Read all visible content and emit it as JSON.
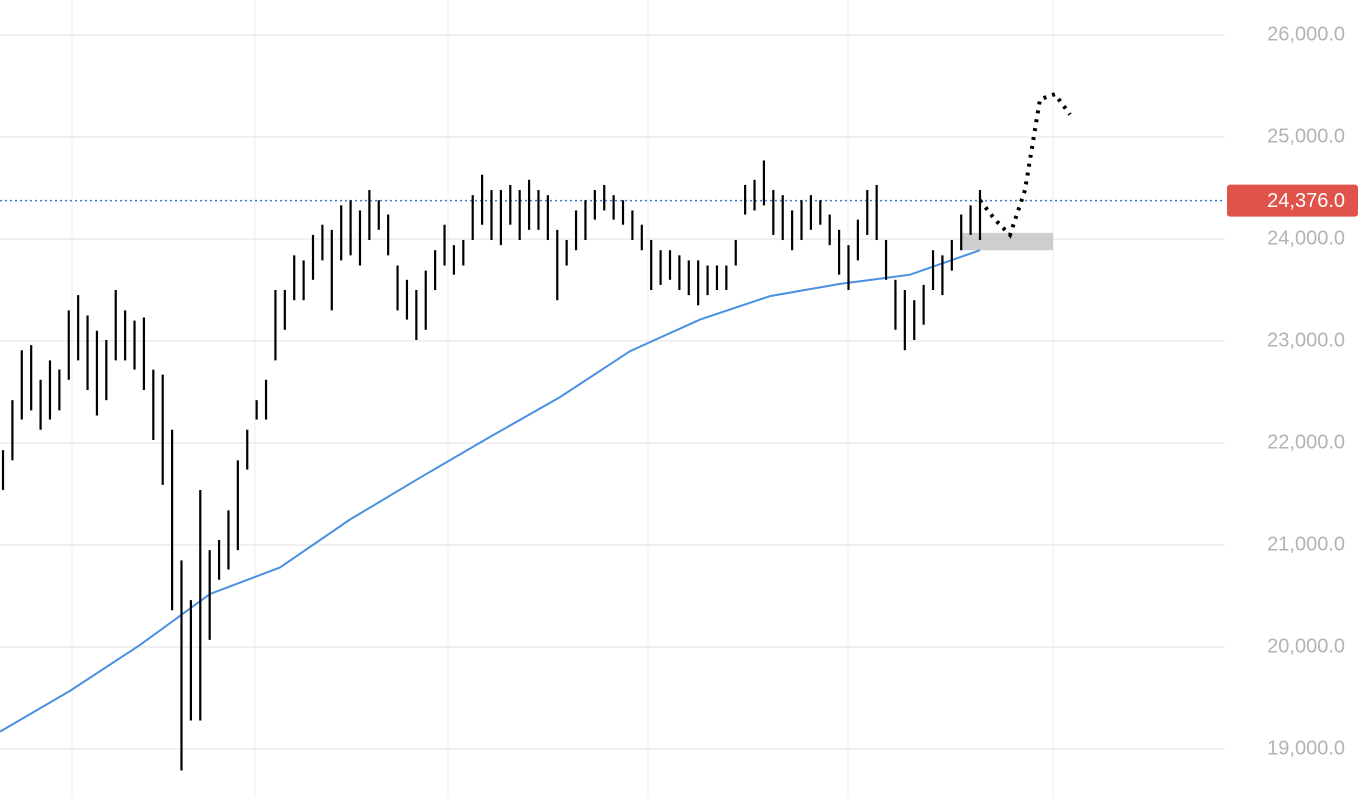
{
  "chart_data": {
    "type": "range-bar",
    "ylim": [
      18520,
      26343
    ],
    "yticks": [
      {
        "value": 19000,
        "label": "19,000.0"
      },
      {
        "value": 20000,
        "label": "20,000.0"
      },
      {
        "value": 21000,
        "label": "21,000.0"
      },
      {
        "value": 22000,
        "label": "22,000.0"
      },
      {
        "value": 23000,
        "label": "23,000.0"
      },
      {
        "value": 24000,
        "label": "24,000.0"
      },
      {
        "value": 25000,
        "label": "25,000.0"
      },
      {
        "value": 26000,
        "label": "26,000.0"
      }
    ],
    "grid": true,
    "bars": {
      "color": "#000000",
      "high": [
        21930,
        22420,
        22910,
        22960,
        22620,
        22810,
        22720,
        23300,
        23450,
        23250,
        23100,
        23010,
        23500,
        23300,
        23200,
        23230,
        22720,
        22670,
        22130,
        20850,
        20460,
        21540,
        20950,
        21050,
        21340,
        21830,
        22130,
        22420,
        22620,
        23500,
        23500,
        23840,
        23790,
        24040,
        24140,
        24090,
        24330,
        24380,
        24280,
        24480,
        24380,
        24240,
        23740,
        23600,
        23500,
        23690,
        23890,
        24140,
        23940,
        23990,
        24430,
        24630,
        24480,
        24480,
        24530,
        24480,
        24580,
        24480,
        24430,
        24090,
        23990,
        24280,
        24380,
        24480,
        24530,
        24430,
        24380,
        24280,
        24140,
        23990,
        23890,
        23890,
        23840,
        23790,
        23790,
        23740,
        23740,
        23740,
        23990,
        24530,
        24580,
        24770,
        24480,
        24430,
        24280,
        24380,
        24430,
        24380,
        24240,
        24090,
        23940,
        24190,
        24480,
        24530,
        23990,
        23600,
        23500,
        23400,
        23550,
        23890,
        23840,
        23990,
        24240,
        24330,
        24480
      ],
      "low": [
        21540,
        21830,
        22230,
        22320,
        22130,
        22230,
        22320,
        22620,
        22810,
        22520,
        22270,
        22420,
        22810,
        22810,
        22720,
        22520,
        22030,
        21590,
        20360,
        18790,
        19280,
        19280,
        20070,
        20660,
        20760,
        20950,
        21740,
        22230,
        22230,
        22810,
        23110,
        23400,
        23400,
        23600,
        23790,
        23300,
        23790,
        23840,
        23740,
        23990,
        24090,
        23840,
        23300,
        23210,
        23010,
        23110,
        23500,
        23740,
        23650,
        23740,
        23990,
        24140,
        23990,
        23940,
        24140,
        23990,
        24090,
        24090,
        23990,
        23400,
        23740,
        23890,
        23990,
        24190,
        24280,
        24190,
        24140,
        23990,
        23890,
        23500,
        23550,
        23600,
        23500,
        23450,
        23350,
        23450,
        23500,
        23500,
        23740,
        24240,
        24280,
        24330,
        24040,
        23990,
        23890,
        23990,
        24090,
        24140,
        23940,
        23650,
        23500,
        23790,
        24040,
        23990,
        23600,
        23110,
        22910,
        23010,
        23160,
        23500,
        23450,
        23690,
        23890,
        24040,
        23990
      ]
    },
    "moving_average": {
      "color": "#4a90e2",
      "values": [
        19170,
        19570,
        20020,
        20520,
        20780,
        21250,
        21660,
        22060,
        22450,
        22900,
        23210,
        23440,
        23560,
        23650,
        23890
      ]
    },
    "projection": {
      "color": "#000000",
      "values": [
        24380,
        24190,
        24040,
        24480,
        25370,
        25420,
        25220
      ]
    },
    "zone": [
      23890,
      24060
    ],
    "last_price": {
      "value": 24376,
      "label": "24,376.0",
      "color": "#e0534a",
      "line_color": "#3a7bd5"
    }
  }
}
